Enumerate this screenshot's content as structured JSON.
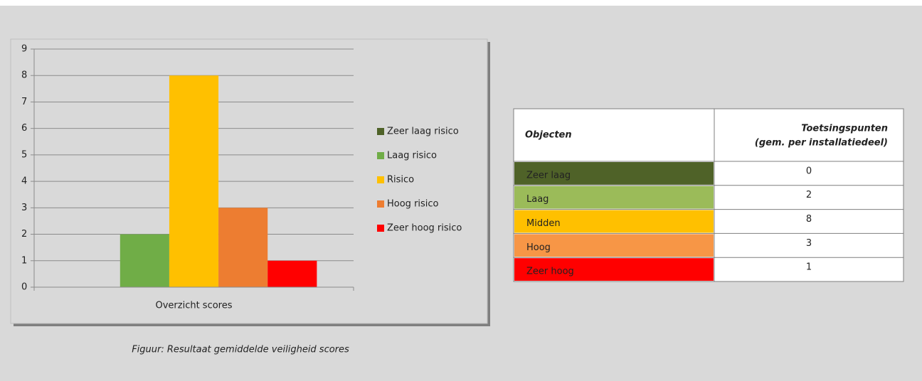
{
  "chart_data": {
    "type": "bar",
    "categories": [
      "Overzicht scores"
    ],
    "series": [
      {
        "name": "Zeer laag risico",
        "color": "#4f6228",
        "values": [
          0
        ]
      },
      {
        "name": "Laag risico",
        "color": "#70ad47",
        "values": [
          2
        ]
      },
      {
        "name": "Risico",
        "color": "#ffc000",
        "values": [
          8
        ]
      },
      {
        "name": "Hoog risico",
        "color": "#ed7d31",
        "values": [
          3
        ]
      },
      {
        "name": "Zeer hoog risico",
        "color": "#ff0000",
        "values": [
          1
        ]
      }
    ],
    "ylim": [
      0,
      9
    ],
    "yticks": [
      0,
      1,
      2,
      3,
      4,
      5,
      6,
      7,
      8,
      9
    ],
    "grid": true,
    "legend": "right"
  },
  "caption": "Figuur: Resultaat gemiddelde veiligheid scores",
  "table": {
    "header": [
      "Objecten",
      [
        "Toetsingspunten",
        "(gem. per installatiedeel)"
      ]
    ],
    "rows": [
      [
        "Zeer laag",
        0
      ],
      [
        "Laag",
        2
      ],
      [
        "Midden",
        8
      ],
      [
        "Hoog",
        3
      ],
      [
        "Zeer hoog",
        1
      ]
    ],
    "row_colors": [
      "#4f6228",
      "#9bbb59",
      "#ffc000",
      "#f79646",
      "#ff0000"
    ]
  }
}
